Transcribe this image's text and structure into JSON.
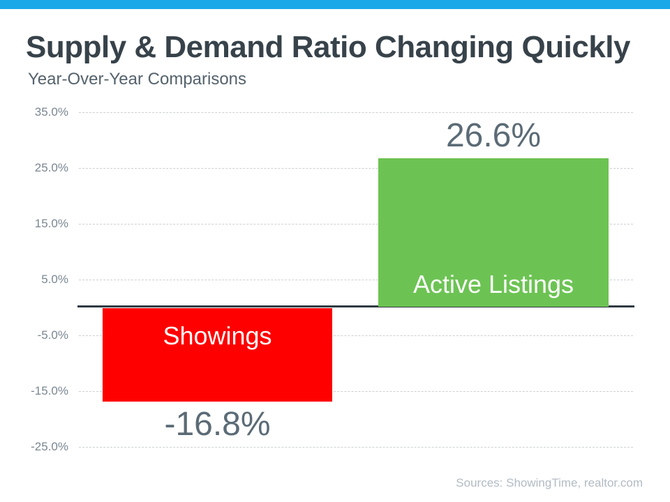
{
  "accent": {
    "top_bar_color": "#1BA8E8"
  },
  "header": {
    "title": "Supply & Demand Ratio Changing Quickly",
    "subtitle": "Year-Over-Year Comparisons"
  },
  "footer": {
    "source": "Sources: ShowingTime, realtor.com"
  },
  "chart_data": {
    "type": "bar",
    "title": "Supply & Demand Ratio Changing Quickly",
    "subtitle": "Year-Over-Year Comparisons",
    "categories": [
      "Showings",
      "Active Listings"
    ],
    "values": [
      -16.8,
      26.6
    ],
    "value_labels": [
      "-16.8%",
      "26.6%"
    ],
    "bar_colors": [
      "#FE0000",
      "#6CC353"
    ],
    "bar_label_color": "#FFFFFF",
    "value_label_color": "#5B6B76",
    "yticks": [
      35,
      25,
      15,
      5,
      -5,
      -15,
      -25
    ],
    "ytick_labels": [
      "35.0%",
      "25.0%",
      "15.0%",
      "5.0%",
      "-5.0%",
      "-15.0%",
      "-25.0%"
    ],
    "ylim": [
      -25,
      35
    ],
    "xlabel": "",
    "ylabel": "",
    "grid": "horizontal-dashed",
    "legend": "none",
    "zero_axis_color": "#2E3A43",
    "source": "Sources: ShowingTime, realtor.com"
  }
}
